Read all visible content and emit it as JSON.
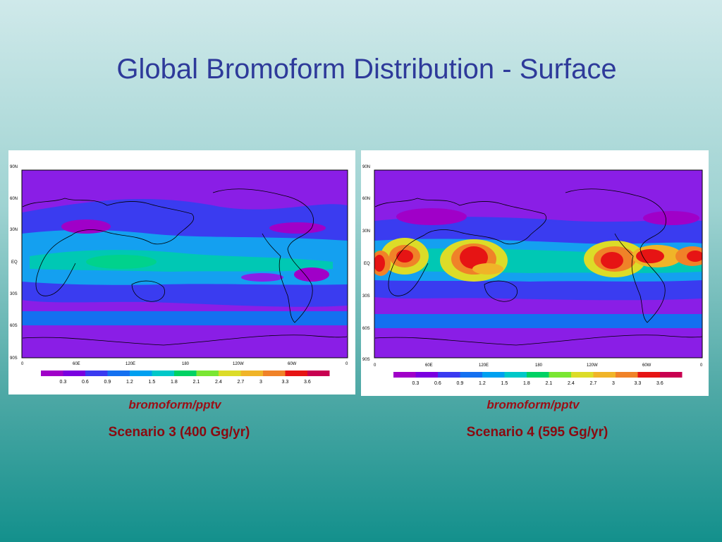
{
  "title": "Global Bromoform Distribution - Surface",
  "colors": {
    "title": "#2e3a9a",
    "caption": "#9b0f16",
    "background_top": "#cfe9ea",
    "background_bottom": "#13908c"
  },
  "color_scale": {
    "labels": [
      "0.3",
      "0.6",
      "0.9",
      "1.2",
      "1.5",
      "1.8",
      "2.1",
      "2.4",
      "2.7",
      "3",
      "3.3",
      "3.6"
    ],
    "colors": [
      "#a000c8",
      "#7a00e0",
      "#3a3af0",
      "#1470f0",
      "#00a0f0",
      "#00c8c8",
      "#00d264",
      "#7ae632",
      "#dcdc28",
      "#f0b428",
      "#f08228",
      "#e61414",
      "#c80050"
    ]
  },
  "axes": {
    "lat_ticks": [
      "90N",
      "60N",
      "30N",
      "EQ",
      "30S",
      "60S",
      "90S"
    ],
    "lon_ticks": [
      "0",
      "60E",
      "120E",
      "180",
      "120W",
      "60W",
      "0"
    ]
  },
  "maps": [
    {
      "units_caption": "bromoform/pptv",
      "scenario_caption": "Scenario 3 (400 Gg/yr)"
    },
    {
      "units_caption": "bromoform/pptv",
      "scenario_caption": "Scenario 4 (595 Gg/yr)"
    }
  ]
}
